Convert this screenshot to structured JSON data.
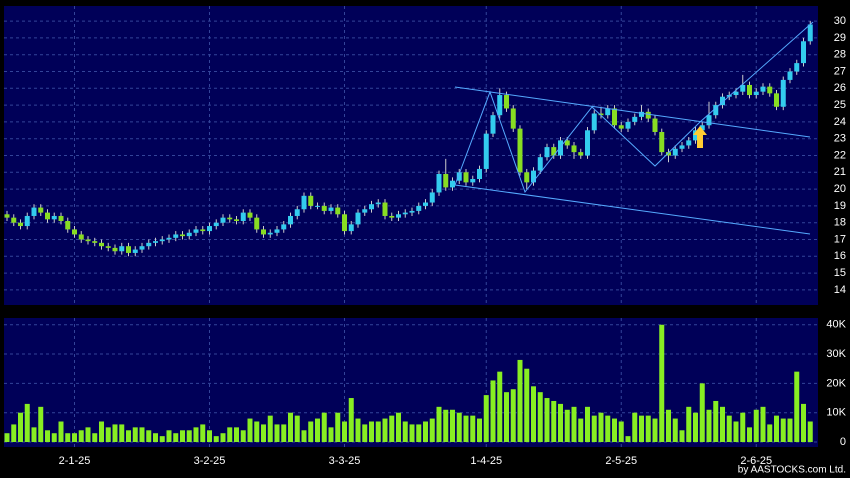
{
  "chart_data": [
    {
      "type": "candlestick",
      "up_color": "#33ccee",
      "down_color": "#88dd22",
      "ylim": [
        13.1,
        30.9
      ],
      "yticks": [
        14,
        15,
        16,
        17,
        18,
        19,
        20,
        21,
        22,
        23,
        24,
        25,
        26,
        27,
        28,
        29,
        30
      ],
      "grid": true,
      "open": [
        18.5,
        18.3,
        18.0,
        17.8,
        18.4,
        18.9,
        18.6,
        18.2,
        18.4,
        18.1,
        17.6,
        17.3,
        17.0,
        16.9,
        16.8,
        16.6,
        16.5,
        16.3,
        16.6,
        16.2,
        16.4,
        16.6,
        16.8,
        16.9,
        17.0,
        17.1,
        17.3,
        17.2,
        17.4,
        17.6,
        17.5,
        17.8,
        18.0,
        18.3,
        18.2,
        18.1,
        18.6,
        18.3,
        17.6,
        17.3,
        17.4,
        17.6,
        17.9,
        18.4,
        18.8,
        19.6,
        19.0,
        19.0,
        18.7,
        18.9,
        18.5,
        17.5,
        17.9,
        18.6,
        18.8,
        19.1,
        19.2,
        18.4,
        18.3,
        18.5,
        18.6,
        18.7,
        19.0,
        19.2,
        19.8,
        20.9,
        20.1,
        20.5,
        21.0,
        20.4,
        20.6,
        21.2,
        23.3,
        24.4,
        25.6,
        24.8,
        23.6,
        21.0,
        20.4,
        21.1,
        21.9,
        22.5,
        22.0,
        22.9,
        22.6,
        22.2,
        22.0,
        23.5,
        24.5,
        24.4,
        24.8,
        23.8,
        23.6,
        24.0,
        24.3,
        24.6,
        24.2,
        23.4,
        22.2,
        22.0,
        22.4,
        22.6,
        22.9,
        23.5,
        23.8,
        24.4,
        25.0,
        25.5,
        25.6,
        25.8,
        26.2,
        25.6,
        25.8,
        26.1,
        25.7,
        24.9,
        26.5,
        27.0,
        27.5,
        28.8
      ],
      "high": [
        18.7,
        18.5,
        18.2,
        18.6,
        19.1,
        19.1,
        18.8,
        18.6,
        18.6,
        18.3,
        17.8,
        17.5,
        17.2,
        17.1,
        17.0,
        16.8,
        16.7,
        16.8,
        16.8,
        16.6,
        16.8,
        17.0,
        17.1,
        17.2,
        17.3,
        17.5,
        17.5,
        17.6,
        17.8,
        17.8,
        18.0,
        18.2,
        18.5,
        18.5,
        18.4,
        18.8,
        18.8,
        18.5,
        17.8,
        17.6,
        17.8,
        18.1,
        18.6,
        19.0,
        19.8,
        19.8,
        19.2,
        19.2,
        19.1,
        19.1,
        18.7,
        18.1,
        18.8,
        19.0,
        19.3,
        19.4,
        19.4,
        18.6,
        18.7,
        18.8,
        18.9,
        19.2,
        19.4,
        20.0,
        21.1,
        21.8,
        20.7,
        21.2,
        21.2,
        20.8,
        21.4,
        23.5,
        24.6,
        26.0,
        25.8,
        25.0,
        23.8,
        21.2,
        21.3,
        22.1,
        22.7,
        22.7,
        23.1,
        23.1,
        22.8,
        22.4,
        23.7,
        24.7,
        24.9,
        25.0,
        25.0,
        24.0,
        24.2,
        24.5,
        25.0,
        24.8,
        24.4,
        23.6,
        22.4,
        22.6,
        22.8,
        23.1,
        23.7,
        24.0,
        25.2,
        25.2,
        25.7,
        25.8,
        26.0,
        26.8,
        26.4,
        26.0,
        26.3,
        26.3,
        25.9,
        26.7,
        27.2,
        27.7,
        29.0,
        30.0
      ],
      "low": [
        18.1,
        17.8,
        17.6,
        17.6,
        18.2,
        18.4,
        18.0,
        18.0,
        17.9,
        17.4,
        17.1,
        16.8,
        16.7,
        16.6,
        16.4,
        16.3,
        16.1,
        16.1,
        16.0,
        16.0,
        16.2,
        16.4,
        16.6,
        16.7,
        16.8,
        16.9,
        17.0,
        17.0,
        17.2,
        17.3,
        17.3,
        17.6,
        17.8,
        18.0,
        17.9,
        17.9,
        18.1,
        17.4,
        17.1,
        17.1,
        17.2,
        17.4,
        17.7,
        18.2,
        18.6,
        18.8,
        18.8,
        18.5,
        18.5,
        18.3,
        17.3,
        17.3,
        17.7,
        18.4,
        18.6,
        18.9,
        18.2,
        18.1,
        18.1,
        18.3,
        18.4,
        18.5,
        18.8,
        19.0,
        19.6,
        19.9,
        19.9,
        20.3,
        20.2,
        20.2,
        20.4,
        21.0,
        23.1,
        24.2,
        24.6,
        23.4,
        20.8,
        20.0,
        20.2,
        20.9,
        21.7,
        21.8,
        21.8,
        22.4,
        21.8,
        21.8,
        21.8,
        23.3,
        24.2,
        24.2,
        23.6,
        23.4,
        23.4,
        23.8,
        24.1,
        24.0,
        23.2,
        22.0,
        21.6,
        21.8,
        22.2,
        22.4,
        22.7,
        23.3,
        23.6,
        24.2,
        24.8,
        25.3,
        25.4,
        25.6,
        25.4,
        25.4,
        25.6,
        25.5,
        24.7,
        24.7,
        26.3,
        26.8,
        27.3,
        28.6
      ],
      "close": [
        18.3,
        18.0,
        17.8,
        18.4,
        18.9,
        18.6,
        18.2,
        18.4,
        18.1,
        17.6,
        17.3,
        17.0,
        16.9,
        16.8,
        16.6,
        16.5,
        16.3,
        16.6,
        16.2,
        16.4,
        16.6,
        16.8,
        16.9,
        17.0,
        17.1,
        17.3,
        17.2,
        17.4,
        17.6,
        17.5,
        17.8,
        18.0,
        18.3,
        18.2,
        18.1,
        18.6,
        18.3,
        17.6,
        17.3,
        17.4,
        17.6,
        17.9,
        18.4,
        18.8,
        19.6,
        19.0,
        19.0,
        18.7,
        18.9,
        18.5,
        17.5,
        17.9,
        18.6,
        18.8,
        19.1,
        19.2,
        18.4,
        18.3,
        18.5,
        18.6,
        18.7,
        19.0,
        19.2,
        19.8,
        20.9,
        20.1,
        20.5,
        21.0,
        20.4,
        20.6,
        21.2,
        23.3,
        24.4,
        25.6,
        24.8,
        23.6,
        21.0,
        20.4,
        21.1,
        21.9,
        22.5,
        22.0,
        22.9,
        22.6,
        22.2,
        22.0,
        23.5,
        24.5,
        24.4,
        24.8,
        23.8,
        23.6,
        24.0,
        24.3,
        24.6,
        24.2,
        23.4,
        22.2,
        22.0,
        22.4,
        22.6,
        22.9,
        23.5,
        23.8,
        24.4,
        25.0,
        25.5,
        25.6,
        25.8,
        26.2,
        25.6,
        25.8,
        26.1,
        25.7,
        24.9,
        26.5,
        27.0,
        27.5,
        28.8,
        29.8
      ]
    },
    {
      "type": "bar",
      "color": "#88ee22",
      "ylim": [
        -1700,
        42300
      ],
      "yticks": [
        0,
        {
          "value": 10000,
          "label": "10K"
        },
        {
          "value": 20000,
          "label": "20K"
        },
        {
          "value": 30000,
          "label": "30K"
        },
        {
          "value": 40000,
          "label": "40K"
        }
      ],
      "grid": true,
      "xticks": [
        {
          "value": 10,
          "label": "2-1-25"
        },
        {
          "value": 30,
          "label": "3-2-25"
        },
        {
          "value": 50,
          "label": "3-3-25"
        },
        {
          "value": 71,
          "label": "1-4-25"
        },
        {
          "value": 91,
          "label": "2-5-25"
        },
        {
          "value": 111,
          "label": "2-6-25"
        }
      ],
      "values": [
        3000,
        6000,
        10000,
        13000,
        5000,
        12000,
        4000,
        3000,
        7000,
        3000,
        3000,
        4000,
        5000,
        3000,
        7000,
        5000,
        6000,
        6000,
        4000,
        5000,
        5000,
        4000,
        3000,
        2000,
        4000,
        3000,
        4000,
        4000,
        5000,
        6000,
        4000,
        2000,
        3000,
        5000,
        5000,
        4000,
        8000,
        7000,
        6000,
        9000,
        6000,
        6000,
        10000,
        9000,
        4000,
        7000,
        8000,
        10000,
        5000,
        10000,
        7000,
        15000,
        8000,
        6000,
        7000,
        7000,
        8000,
        9000,
        10000,
        7000,
        6000,
        6000,
        7000,
        8000,
        12000,
        11000,
        11000,
        10000,
        9000,
        9000,
        8000,
        16000,
        21000,
        24000,
        17000,
        18000,
        28000,
        25000,
        19000,
        17000,
        15000,
        14000,
        13000,
        11000,
        12000,
        8000,
        12000,
        9000,
        10000,
        9000,
        8000,
        7000,
        2000,
        10000,
        9000,
        9000,
        8000,
        40000,
        11000,
        8000,
        4000,
        12000,
        10000,
        20000,
        11000,
        14000,
        12000,
        9000,
        7000,
        10000,
        5000,
        11000,
        12000,
        6000,
        9000,
        8000,
        8000,
        24000,
        13000,
        7000
      ]
    }
  ],
  "copyright": "by AASTOCKS.com Ltd."
}
